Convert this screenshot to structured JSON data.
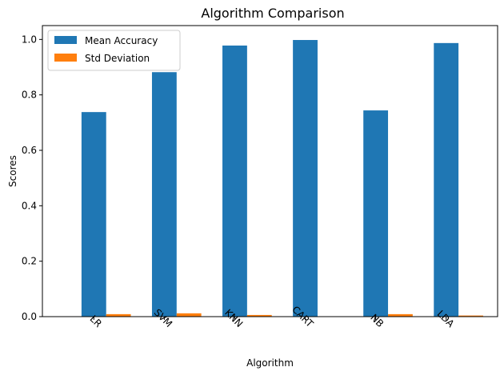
{
  "chart_data": {
    "type": "bar",
    "title": "Algorithm Comparison",
    "xlabel": "Algorithm",
    "ylabel": "Scores",
    "categories": [
      "LR",
      "SVM",
      "KNN",
      "CART",
      "NB",
      "LDA"
    ],
    "series": [
      {
        "name": "Mean Accuracy",
        "color": "#1f77b4",
        "values": [
          0.738,
          0.882,
          0.978,
          0.998,
          0.744,
          0.987
        ]
      },
      {
        "name": "Std Deviation",
        "color": "#ff7f0e",
        "values": [
          0.009,
          0.012,
          0.006,
          0.0,
          0.009,
          0.004
        ]
      }
    ],
    "ylim": [
      0.0,
      1.05
    ],
    "yticks": [
      "0.0",
      "0.2",
      "0.4",
      "0.6",
      "0.8",
      "1.0"
    ],
    "grid": false,
    "legend_position": "top-left",
    "xtick_rotation": "45 degrees"
  }
}
